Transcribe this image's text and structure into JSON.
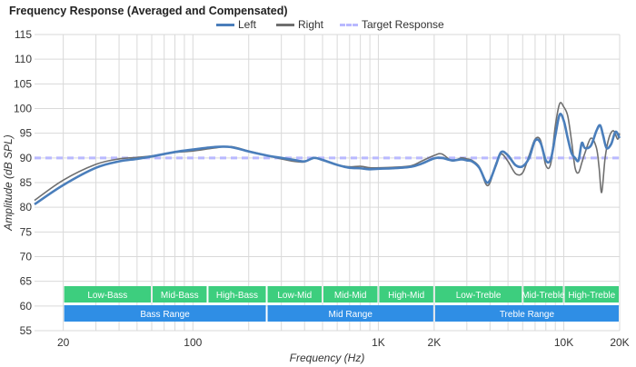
{
  "chart_data": {
    "type": "line",
    "title": "Frequency Response (Averaged and Compensated)",
    "xlabel": "Frequency (Hz)",
    "ylabel": "Amplitude (dB SPL)",
    "xscale": "log",
    "xlim": [
      14,
      20000
    ],
    "ylim": [
      55,
      115
    ],
    "yticks": [
      55,
      60,
      65,
      70,
      75,
      80,
      85,
      90,
      95,
      100,
      105,
      110,
      115
    ],
    "xticks": [
      {
        "value": 20,
        "label": "20"
      },
      {
        "value": 100,
        "label": "100"
      },
      {
        "value": 1000,
        "label": "1K"
      },
      {
        "value": 2000,
        "label": "2K"
      },
      {
        "value": 10000,
        "label": "10K"
      },
      {
        "value": 20000,
        "label": "20K"
      }
    ],
    "grid": true,
    "legend_position": "top",
    "series": [
      {
        "name": "Left",
        "color": "#4a7ebb",
        "style": "solid",
        "points": [
          [
            14,
            80.6
          ],
          [
            20,
            84.5
          ],
          [
            30,
            88
          ],
          [
            40,
            89.3
          ],
          [
            50,
            89.8
          ],
          [
            60,
            90.3
          ],
          [
            80,
            91.2
          ],
          [
            100,
            91.7
          ],
          [
            130,
            92.2
          ],
          [
            160,
            92.2
          ],
          [
            200,
            91.3
          ],
          [
            250,
            90.5
          ],
          [
            300,
            90
          ],
          [
            350,
            89.6
          ],
          [
            400,
            89.3
          ],
          [
            450,
            90
          ],
          [
            500,
            89.6
          ],
          [
            600,
            88.6
          ],
          [
            700,
            88
          ],
          [
            800,
            87.9
          ],
          [
            900,
            87.7
          ],
          [
            1000,
            87.8
          ],
          [
            1200,
            87.9
          ],
          [
            1500,
            88.2
          ],
          [
            1700,
            88.8
          ],
          [
            2000,
            89.9
          ],
          [
            2200,
            90
          ],
          [
            2500,
            89.5
          ],
          [
            2800,
            89.7
          ],
          [
            3000,
            89.5
          ],
          [
            3200,
            89.3
          ],
          [
            3500,
            88
          ],
          [
            3800,
            85.2
          ],
          [
            4000,
            85.5
          ],
          [
            4300,
            88.5
          ],
          [
            4600,
            91.2
          ],
          [
            5000,
            90.5
          ],
          [
            5500,
            88.5
          ],
          [
            6000,
            88.3
          ],
          [
            6500,
            90
          ],
          [
            7000,
            93.5
          ],
          [
            7500,
            93
          ],
          [
            8000,
            89.5
          ],
          [
            8500,
            89.7
          ],
          [
            9000,
            94.5
          ],
          [
            9500,
            98.8
          ],
          [
            10000,
            97.5
          ],
          [
            10500,
            94
          ],
          [
            11000,
            91
          ],
          [
            11500,
            90
          ],
          [
            12000,
            89.5
          ],
          [
            12500,
            93
          ],
          [
            13000,
            92
          ],
          [
            14000,
            92.5
          ],
          [
            15000,
            95.5
          ],
          [
            15700,
            96.6
          ],
          [
            16300,
            94.5
          ],
          [
            17000,
            92
          ],
          [
            18000,
            92.8
          ],
          [
            19000,
            95.3
          ],
          [
            20000,
            94
          ]
        ]
      },
      {
        "name": "Right",
        "color": "#6f6f6f",
        "style": "solid",
        "points": [
          [
            14,
            81.4
          ],
          [
            20,
            85.5
          ],
          [
            30,
            88.7
          ],
          [
            40,
            89.8
          ],
          [
            50,
            90.1
          ],
          [
            60,
            90.4
          ],
          [
            80,
            91.1
          ],
          [
            100,
            91.4
          ],
          [
            130,
            92
          ],
          [
            160,
            92.3
          ],
          [
            200,
            91.4
          ],
          [
            250,
            90.5
          ],
          [
            300,
            89.8
          ],
          [
            350,
            89.3
          ],
          [
            400,
            89.2
          ],
          [
            450,
            90.1
          ],
          [
            500,
            89.5
          ],
          [
            600,
            88.6
          ],
          [
            700,
            88.2
          ],
          [
            800,
            88.3
          ],
          [
            900,
            88
          ],
          [
            1000,
            88
          ],
          [
            1200,
            88.1
          ],
          [
            1500,
            88.4
          ],
          [
            1700,
            89.3
          ],
          [
            2000,
            90.5
          ],
          [
            2200,
            90.8
          ],
          [
            2500,
            89.4
          ],
          [
            2800,
            90
          ],
          [
            3000,
            89.8
          ],
          [
            3200,
            89.5
          ],
          [
            3500,
            88.2
          ],
          [
            3800,
            84.7
          ],
          [
            4000,
            85
          ],
          [
            4300,
            88.8
          ],
          [
            4600,
            90.8
          ],
          [
            5000,
            89.3
          ],
          [
            5500,
            86.8
          ],
          [
            6000,
            87
          ],
          [
            6500,
            90.5
          ],
          [
            7000,
            93.8
          ],
          [
            7500,
            93.5
          ],
          [
            8000,
            88.5
          ],
          [
            8500,
            88.8
          ],
          [
            9000,
            96.5
          ],
          [
            9500,
            101
          ],
          [
            10000,
            100.3
          ],
          [
            10500,
            98.5
          ],
          [
            11000,
            93.5
          ],
          [
            11500,
            88
          ],
          [
            12000,
            87
          ],
          [
            12500,
            89
          ],
          [
            13000,
            91
          ],
          [
            14000,
            94
          ],
          [
            15000,
            92
          ],
          [
            15500,
            88
          ],
          [
            16000,
            83
          ],
          [
            16700,
            90
          ],
          [
            17500,
            94
          ],
          [
            18500,
            95.5
          ],
          [
            19500,
            93.8
          ],
          [
            20000,
            95
          ]
        ]
      },
      {
        "name": "Target Response",
        "color": "#b9b9ff",
        "style": "dashed",
        "points": [
          [
            14,
            90
          ],
          [
            20000,
            90
          ]
        ]
      }
    ],
    "bands": [
      {
        "label": "Low-Bass",
        "from": 20,
        "to": 60,
        "row": "top",
        "color": "#3dce7e"
      },
      {
        "label": "Mid-Bass",
        "from": 60,
        "to": 120,
        "row": "top",
        "color": "#3dce7e"
      },
      {
        "label": "High-Bass",
        "from": 120,
        "to": 250,
        "row": "top",
        "color": "#3dce7e"
      },
      {
        "label": "Low-Mid",
        "from": 250,
        "to": 500,
        "row": "top",
        "color": "#3dce7e"
      },
      {
        "label": "Mid-Mid",
        "from": 500,
        "to": 1000,
        "row": "top",
        "color": "#3dce7e"
      },
      {
        "label": "High-Mid",
        "from": 1000,
        "to": 2000,
        "row": "top",
        "color": "#3dce7e"
      },
      {
        "label": "Low-Treble",
        "from": 2000,
        "to": 6000,
        "row": "top",
        "color": "#3dce7e"
      },
      {
        "label": "Mid-Treble",
        "from": 6000,
        "to": 10000,
        "row": "top",
        "color": "#3dce7e"
      },
      {
        "label": "High-Treble",
        "from": 10000,
        "to": 20000,
        "row": "top",
        "color": "#3dce7e"
      },
      {
        "label": "Bass Range",
        "from": 20,
        "to": 250,
        "row": "bottom",
        "color": "#2f8ee5"
      },
      {
        "label": "Mid Range",
        "from": 250,
        "to": 2000,
        "row": "bottom",
        "color": "#2f8ee5"
      },
      {
        "label": "Treble Range",
        "from": 2000,
        "to": 20000,
        "row": "bottom",
        "color": "#2f8ee5"
      }
    ]
  }
}
